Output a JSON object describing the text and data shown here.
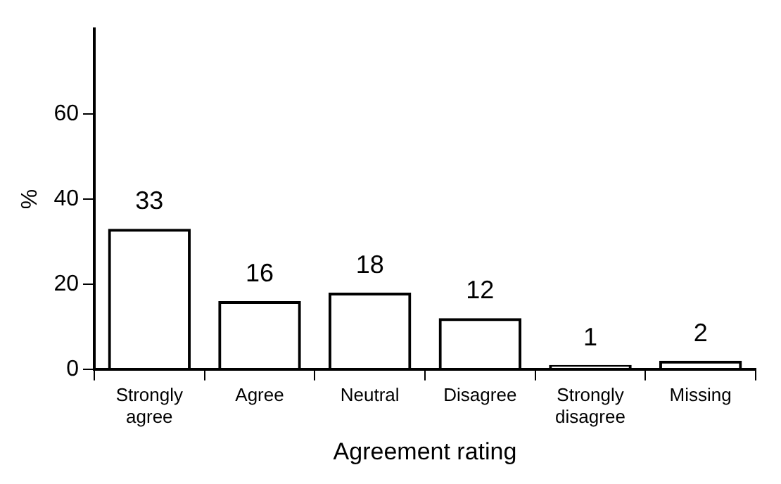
{
  "chart_data": {
    "type": "bar",
    "xlabel": "Agreement rating",
    "ylabel": "%",
    "categories": [
      "Strongly agree",
      "Agree",
      "Neutral",
      "Disagree",
      "Strongly disagree",
      "Missing"
    ],
    "values": [
      33,
      16,
      18,
      12,
      1,
      2
    ],
    "color": "#000000",
    "ylim": [
      0,
      80
    ],
    "yticks": [
      0,
      20,
      40,
      60
    ],
    "grid": false,
    "legend": false,
    "data_labels": true
  }
}
